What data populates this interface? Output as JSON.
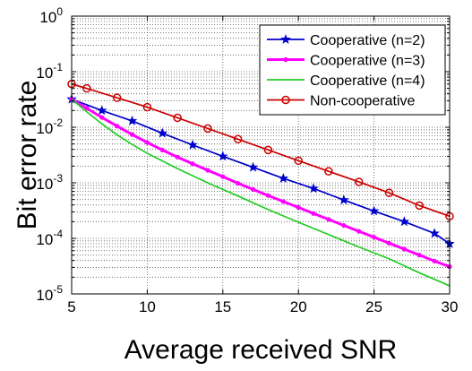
{
  "chart_data": {
    "type": "line",
    "title": "",
    "xlabel": "Average received SNR",
    "ylabel": "Bit error rate",
    "xlim": [
      5,
      30
    ],
    "ylim": [
      1e-05,
      1
    ],
    "yscale": "log",
    "grid": "dotted major and minor",
    "legend_position": "top-right",
    "x_ticks": [
      5,
      10,
      15,
      20,
      25,
      30
    ],
    "y_ticks": [
      1e-05,
      0.0001,
      0.001,
      0.01,
      0.1,
      1
    ],
    "x_tick_labels": [
      "5",
      "10",
      "15",
      "20",
      "25",
      "30"
    ],
    "y_tick_labels": [
      {
        "base": "10",
        "exp": "-5"
      },
      {
        "base": "10",
        "exp": "-4"
      },
      {
        "base": "10",
        "exp": "-3"
      },
      {
        "base": "10",
        "exp": "-2"
      },
      {
        "base": "10",
        "exp": "-1"
      },
      {
        "base": "10",
        "exp": "0"
      }
    ],
    "series": [
      {
        "name": "Cooperative (n=2)",
        "color": "#0000cc",
        "marker": "star",
        "x": [
          5,
          7,
          9,
          11,
          13,
          15,
          17,
          19,
          21,
          23,
          25,
          27,
          29,
          30
        ],
        "y": [
          0.032,
          0.02,
          0.013,
          0.0078,
          0.0048,
          0.003,
          0.0019,
          0.0012,
          0.00079,
          0.00049,
          0.00031,
          0.0002,
          0.000123,
          8e-05
        ]
      },
      {
        "name": "Cooperative (n=3)",
        "color": "#ff00ff",
        "marker": "point",
        "x": [
          5,
          6,
          7,
          8,
          9,
          10,
          11,
          12,
          13,
          14,
          15,
          16,
          17,
          18,
          19,
          20,
          21,
          22,
          23,
          24,
          25,
          26,
          27,
          28,
          29,
          30
        ],
        "y": [
          0.032,
          0.022,
          0.015,
          0.0105,
          0.0074,
          0.0053,
          0.0039,
          0.0029,
          0.0022,
          0.00168,
          0.00129,
          0.00098,
          0.00076,
          0.00059,
          0.00046,
          0.00036,
          0.00028,
          0.000219,
          0.000171,
          0.000134,
          0.000105,
          8.2e-05,
          6.4e-05,
          5e-05,
          3.9e-05,
          3.1e-05
        ]
      },
      {
        "name": "Cooperative (n=4)",
        "color": "#22cc22",
        "marker": "none",
        "x": [
          5,
          6,
          7,
          8,
          9,
          10,
          12,
          14,
          16,
          18,
          20,
          22,
          24,
          26,
          28,
          30
        ],
        "y": [
          0.032,
          0.019,
          0.0115,
          0.0073,
          0.0049,
          0.0034,
          0.0018,
          0.001,
          0.00058,
          0.00033,
          0.000195,
          0.000117,
          7e-05,
          4.3e-05,
          2.4e-05,
          1.4e-05
        ]
      },
      {
        "name": "Non-cooperative",
        "color": "#cc0000",
        "marker": "circle",
        "x": [
          5,
          6,
          8,
          10,
          12,
          14,
          16,
          18,
          20,
          22,
          24,
          26,
          28,
          30
        ],
        "y": [
          0.06,
          0.05,
          0.034,
          0.023,
          0.0148,
          0.0095,
          0.0061,
          0.0039,
          0.0025,
          0.00161,
          0.00104,
          0.00066,
          0.00039,
          0.00025
        ]
      }
    ]
  }
}
